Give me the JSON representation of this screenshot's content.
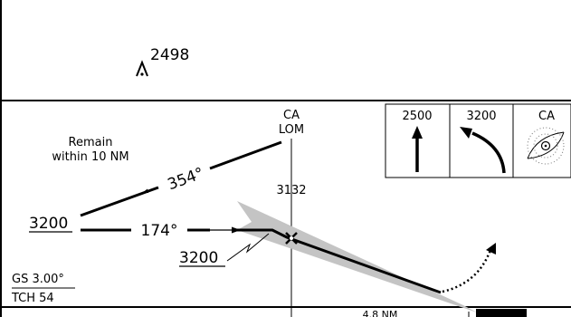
{
  "top_panel": {
    "obstacle_elevation": "2498"
  },
  "profile": {
    "remain_line1": "Remain",
    "remain_line2": "within 10 NM",
    "outbound_course": "354°",
    "inbound_course": "174°",
    "procedure_turn_altitude": "3200",
    "fix_altitude": "3200",
    "fix_id": "CA",
    "fix_type": "LOM",
    "fix_elevation": "3132",
    "gs_angle": "GS 3.00°",
    "tch": "TCH 54",
    "distance": "4.8 NM"
  },
  "missed_approach_boxes": [
    {
      "label": "2500",
      "icon": "arrow-up-icon"
    },
    {
      "label": "3200",
      "icon": "turn-right-arrow-icon"
    },
    {
      "label": "CA",
      "icon": "holding-fix-icon"
    }
  ],
  "colors": {
    "ink": "#000000",
    "approach_shade": "#c4c4c4",
    "dots": "#666666"
  }
}
